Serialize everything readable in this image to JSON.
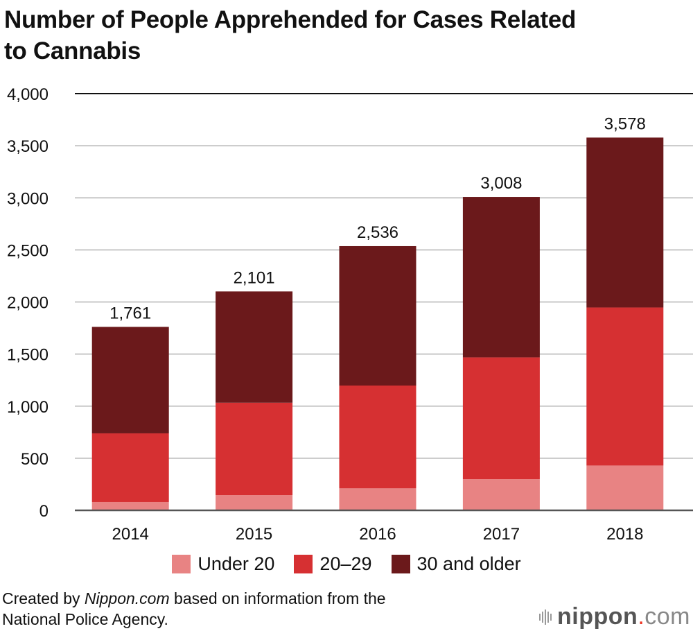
{
  "chart_data": {
    "type": "bar",
    "stacked": true,
    "title": "Number of People Apprehended for Cases Related to Cannabis",
    "xlabel": "",
    "ylabel": "",
    "ylim": [
      0,
      4000
    ],
    "yticks": [
      0,
      500,
      1000,
      1500,
      2000,
      2500,
      3000,
      3500,
      4000
    ],
    "ytick_labels": [
      "0",
      "500",
      "1,000",
      "1,500",
      "2,000",
      "2,500",
      "3,000",
      "3,500",
      "4,000"
    ],
    "grid": true,
    "categories": [
      "2014",
      "2015",
      "2016",
      "2017",
      "2018"
    ],
    "series": [
      {
        "name": "Under 20",
        "color": "#e88383",
        "values": [
          80,
          146,
          211,
          299,
          430
        ]
      },
      {
        "name": "20–29",
        "color": "#d63032",
        "values": [
          659,
          887,
          987,
          1169,
          1517
        ]
      },
      {
        "name": "30 and older",
        "color": "#6b191b",
        "values": [
          1022,
          1068,
          1338,
          1540,
          1631
        ]
      }
    ],
    "totals": [
      1761,
      2101,
      2536,
      3008,
      3578
    ],
    "total_labels": [
      "1,761",
      "2,101",
      "2,536",
      "3,008",
      "3,578"
    ],
    "legend_position": "bottom"
  },
  "title_line1": "Number of People Apprehended for Cases Related",
  "title_line2": "to Cannabis",
  "legend": [
    {
      "label": "Under 20",
      "color": "#e88383"
    },
    {
      "label": "20–29",
      "color": "#d63032"
    },
    {
      "label": "30 and older",
      "color": "#6b191b"
    }
  ],
  "source": {
    "prefix": "Created by ",
    "brand": "Nippon.com",
    "suffix": " based on information from the",
    "line2": "National Police Agency."
  },
  "logo": {
    "name": "nippon",
    "dot": ".",
    "tld": "com"
  }
}
